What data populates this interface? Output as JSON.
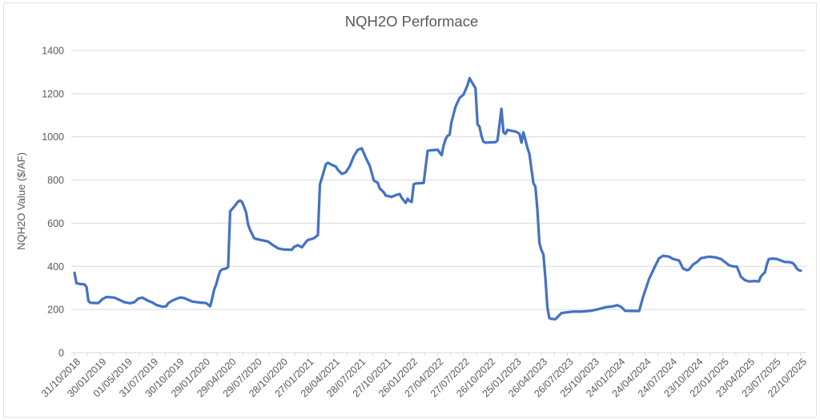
{
  "chart_data": {
    "type": "line",
    "title": "NQH2O Performace",
    "ylabel": "NQH2O Value ($/AF)",
    "xlabel": "",
    "ylim": [
      0,
      1400
    ],
    "y_ticks": [
      0,
      200,
      400,
      600,
      800,
      1000,
      1200,
      1400
    ],
    "x_tick_labels": [
      "31/10/2018",
      "30/01/2019",
      "01/05/2019",
      "31/07/2019",
      "30/10/2019",
      "29/01/2020",
      "29/04/2020",
      "29/07/2020",
      "28/10/2020",
      "27/01/2021",
      "28/04/2021",
      "28/07/2021",
      "27/10/2021",
      "26/01/2022",
      "27/04/2022",
      "27/07/2022",
      "26/10/2022",
      "25/01/2023",
      "26/04/2023",
      "26/07/2023",
      "25/10/2023",
      "24/01/2024",
      "24/04/2024",
      "24/07/2024",
      "23/10/2024",
      "22/01/2025",
      "23/04/2025",
      "23/07/2025",
      "22/10/2025"
    ],
    "weeks_between_labels": 13,
    "total_weeks": 364,
    "grid": "horizontal",
    "legend": "none",
    "series": [
      {
        "color": "#4472C4",
        "points": [
          [
            0,
            370
          ],
          [
            1,
            322
          ],
          [
            3,
            318
          ],
          [
            5,
            316
          ],
          [
            6,
            305
          ],
          [
            7,
            240
          ],
          [
            8,
            231
          ],
          [
            12,
            230
          ],
          [
            14,
            248
          ],
          [
            16,
            258
          ],
          [
            20,
            255
          ],
          [
            22,
            247
          ],
          [
            25,
            234
          ],
          [
            28,
            229
          ],
          [
            30,
            234
          ],
          [
            32,
            251
          ],
          [
            34,
            255
          ],
          [
            37,
            240
          ],
          [
            39,
            233
          ],
          [
            41,
            221
          ],
          [
            44,
            213
          ],
          [
            46,
            215
          ],
          [
            47,
            230
          ],
          [
            49,
            241
          ],
          [
            51,
            249
          ],
          [
            53,
            256
          ],
          [
            55,
            253
          ],
          [
            57,
            245
          ],
          [
            59,
            237
          ],
          [
            63,
            232
          ],
          [
            66,
            230
          ],
          [
            68,
            215
          ],
          [
            69,
            250
          ],
          [
            70,
            292
          ],
          [
            71,
            316
          ],
          [
            72,
            350
          ],
          [
            73,
            378
          ],
          [
            74,
            386
          ],
          [
            76,
            390
          ],
          [
            77,
            397
          ],
          [
            78,
            655
          ],
          [
            79,
            665
          ],
          [
            80,
            676
          ],
          [
            82,
            700
          ],
          [
            83,
            705
          ],
          [
            84,
            698
          ],
          [
            85,
            676
          ],
          [
            86,
            650
          ],
          [
            87,
            594
          ],
          [
            88,
            568
          ],
          [
            89,
            550
          ],
          [
            90,
            531
          ],
          [
            91,
            527
          ],
          [
            97,
            515
          ],
          [
            99,
            501
          ],
          [
            101,
            490
          ],
          [
            102,
            483
          ],
          [
            105,
            478
          ],
          [
            109,
            477
          ],
          [
            110,
            490
          ],
          [
            112,
            498
          ],
          [
            114,
            488
          ],
          [
            116,
            513
          ],
          [
            117,
            522
          ],
          [
            120,
            530
          ],
          [
            122,
            545
          ],
          [
            123,
            780
          ],
          [
            124,
            810
          ],
          [
            126,
            873
          ],
          [
            127,
            880
          ],
          [
            129,
            870
          ],
          [
            131,
            862
          ],
          [
            132,
            847
          ],
          [
            134,
            828
          ],
          [
            136,
            836
          ],
          [
            138,
            865
          ],
          [
            140,
            910
          ],
          [
            142,
            940
          ],
          [
            144,
            947
          ],
          [
            146,
            903
          ],
          [
            148,
            865
          ],
          [
            150,
            798
          ],
          [
            152,
            787
          ],
          [
            153,
            761
          ],
          [
            155,
            743
          ],
          [
            156,
            728
          ],
          [
            159,
            722
          ],
          [
            161,
            730
          ],
          [
            163,
            735
          ],
          [
            164,
            717
          ],
          [
            166,
            694
          ],
          [
            167,
            713
          ],
          [
            168,
            702
          ],
          [
            169,
            698
          ],
          [
            170,
            780
          ],
          [
            171,
            784
          ],
          [
            175,
            786
          ],
          [
            177,
            935
          ],
          [
            179,
            938
          ],
          [
            182,
            940
          ],
          [
            184,
            915
          ],
          [
            185,
            960
          ],
          [
            186,
            990
          ],
          [
            187,
            1005
          ],
          [
            188,
            1010
          ],
          [
            189,
            1070
          ],
          [
            191,
            1140
          ],
          [
            193,
            1180
          ],
          [
            195,
            1196
          ],
          [
            197,
            1240
          ],
          [
            198,
            1272
          ],
          [
            199,
            1255
          ],
          [
            201,
            1225
          ],
          [
            202,
            1058
          ],
          [
            203,
            1047
          ],
          [
            204,
            1003
          ],
          [
            205,
            977
          ],
          [
            206,
            973
          ],
          [
            211,
            975
          ],
          [
            212,
            984
          ],
          [
            214,
            1130
          ],
          [
            215,
            1021
          ],
          [
            216,
            1014
          ],
          [
            217,
            1032
          ],
          [
            220,
            1026
          ],
          [
            221,
            1025
          ],
          [
            223,
            1014
          ],
          [
            224,
            973
          ],
          [
            225,
            1021
          ],
          [
            227,
            950
          ],
          [
            228,
            921
          ],
          [
            230,
            785
          ],
          [
            231,
            769
          ],
          [
            232,
            661
          ],
          [
            233,
            509
          ],
          [
            234,
            475
          ],
          [
            235,
            455
          ],
          [
            236,
            345
          ],
          [
            237,
            212
          ],
          [
            238,
            160
          ],
          [
            239,
            157
          ],
          [
            241,
            155
          ],
          [
            244,
            183
          ],
          [
            246,
            186
          ],
          [
            250,
            190
          ],
          [
            254,
            190
          ],
          [
            258,
            193
          ],
          [
            262,
            200
          ],
          [
            266,
            210
          ],
          [
            270,
            215
          ],
          [
            272,
            220
          ],
          [
            274,
            212
          ],
          [
            276,
            194
          ],
          [
            280,
            193
          ],
          [
            283,
            193
          ],
          [
            285,
            260
          ],
          [
            288,
            342
          ],
          [
            291,
            401
          ],
          [
            293,
            438
          ],
          [
            295,
            449
          ],
          [
            298,
            445
          ],
          [
            300,
            434
          ],
          [
            303,
            427
          ],
          [
            305,
            390
          ],
          [
            307,
            382
          ],
          [
            308,
            386
          ],
          [
            310,
            408
          ],
          [
            312,
            420
          ],
          [
            314,
            438
          ],
          [
            318,
            445
          ],
          [
            321,
            442
          ],
          [
            324,
            434
          ],
          [
            326,
            420
          ],
          [
            328,
            405
          ],
          [
            330,
            400
          ],
          [
            332,
            398
          ],
          [
            334,
            352
          ],
          [
            336,
            336
          ],
          [
            338,
            330
          ],
          [
            341,
            332
          ],
          [
            343,
            330
          ],
          [
            344,
            353
          ],
          [
            345,
            364
          ],
          [
            346,
            371
          ],
          [
            347,
            408
          ],
          [
            348,
            434
          ],
          [
            350,
            436
          ],
          [
            352,
            434
          ],
          [
            354,
            427
          ],
          [
            356,
            420
          ],
          [
            358,
            420
          ],
          [
            360,
            415
          ],
          [
            361,
            405
          ],
          [
            362,
            390
          ],
          [
            363,
            382
          ],
          [
            364,
            380
          ]
        ]
      }
    ]
  },
  "colors": {
    "accent": "#4472C4",
    "grid": "#D9D9D9",
    "text": "#595959",
    "background": "#FFFFFF"
  }
}
